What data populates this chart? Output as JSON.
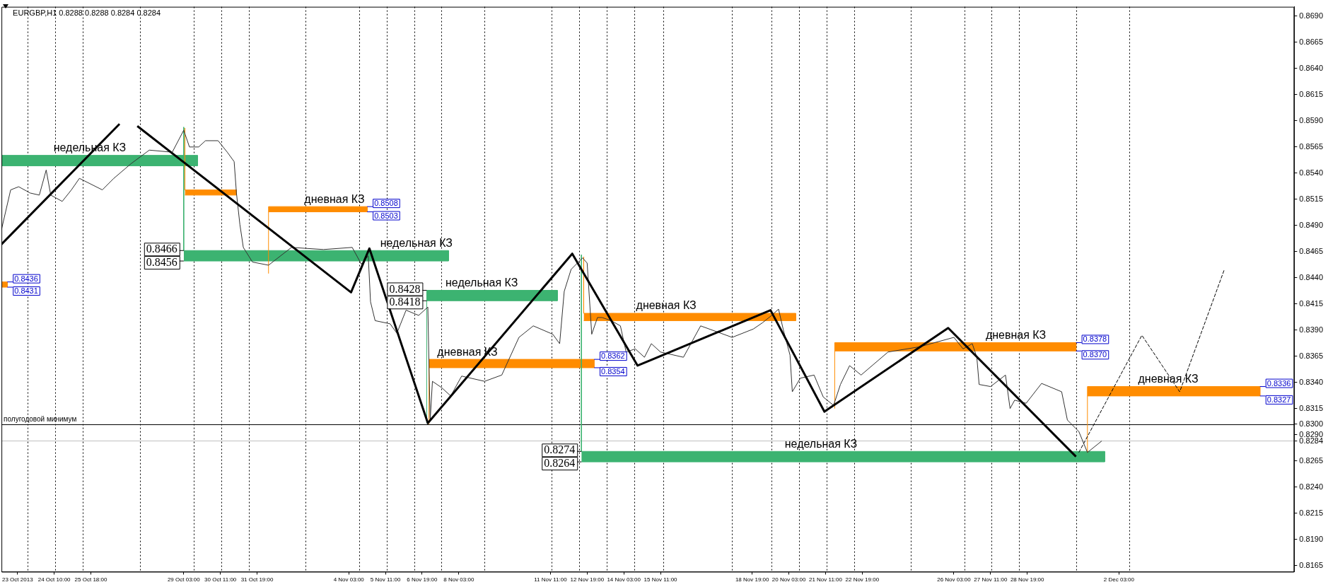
{
  "chart_data": {
    "type": "line",
    "title": "EURGBP,H1 0.8288 0.8288 0.8284 0.8284",
    "xlim": [
      "2013-10-22T12:00",
      "2013-12-08T12:00"
    ],
    "ylim": [
      0.8159,
      0.8699
    ],
    "xticks": [
      {
        "value": "2013-10-23T02:00",
        "label": "23 Oct 2013"
      },
      {
        "value": "2013-10-24T10:00",
        "label": "24 Oct 10:00"
      },
      {
        "value": "2013-10-25T18:00",
        "label": "25 Oct 18:00"
      },
      {
        "value": "2013-10-29T03:00",
        "label": "29 Oct 03:00"
      },
      {
        "value": "2013-10-30T11:00",
        "label": "30 Oct 11:00"
      },
      {
        "value": "2013-10-31T19:00",
        "label": "31 Oct 19:00"
      },
      {
        "value": "2013-11-04T03:00",
        "label": "4 Nov 03:00"
      },
      {
        "value": "2013-11-05T11:00",
        "label": "5 Nov 11:00"
      },
      {
        "value": "2013-11-06T19:00",
        "label": "6 Nov 19:00"
      },
      {
        "value": "2013-11-08T03:00",
        "label": "8 Nov 03:00"
      },
      {
        "value": "2013-11-11T11:00",
        "label": "11 Nov 11:00"
      },
      {
        "value": "2013-11-12T19:00",
        "label": "12 Nov 19:00"
      },
      {
        "value": "2013-11-14T03:00",
        "label": "14 Nov 03:00"
      },
      {
        "value": "2013-11-15T11:00",
        "label": "15 Nov 11:00"
      },
      {
        "value": "2013-11-18T19:00",
        "label": "18 Nov 19:00"
      },
      {
        "value": "2013-11-20T03:00",
        "label": "20 Nov 03:00"
      },
      {
        "value": "2013-11-21T11:00",
        "label": "21 Nov 11:00"
      },
      {
        "value": "2013-11-22T19:00",
        "label": "22 Nov 19:00"
      },
      {
        "value": "2013-11-26T03:00",
        "label": "26 Nov 03:00"
      },
      {
        "value": "2013-11-27T11:00",
        "label": "27 Nov 11:00"
      },
      {
        "value": "2013-11-28T19:00",
        "label": "28 Nov 19:00"
      },
      {
        "value": "2013-12-02T03:00",
        "label": "2 Dec 03:00"
      }
    ],
    "yticks": [
      {
        "value": 0.869,
        "label": "0.8690"
      },
      {
        "value": 0.8665,
        "label": "0.8665"
      },
      {
        "value": 0.864,
        "label": "0.8640"
      },
      {
        "value": 0.8615,
        "label": "0.8615"
      },
      {
        "value": 0.859,
        "label": "0.8590"
      },
      {
        "value": 0.8565,
        "label": "0.8565"
      },
      {
        "value": 0.854,
        "label": "0.8540"
      },
      {
        "value": 0.8515,
        "label": "0.8515"
      },
      {
        "value": 0.849,
        "label": "0.8490"
      },
      {
        "value": 0.8465,
        "label": "0.8465"
      },
      {
        "value": 0.844,
        "label": "0.8440"
      },
      {
        "value": 0.8415,
        "label": "0.8415"
      },
      {
        "value": 0.839,
        "label": "0.8390"
      },
      {
        "value": 0.8365,
        "label": "0.8365"
      },
      {
        "value": 0.834,
        "label": "0.8340"
      },
      {
        "value": 0.8315,
        "label": "0.8315"
      },
      {
        "value": 0.83,
        "label": "0.8300"
      },
      {
        "value": 0.829,
        "label": "0.8290"
      },
      {
        "value": 0.8284,
        "label": "0.8284"
      },
      {
        "value": 0.8265,
        "label": "0.8265"
      },
      {
        "value": 0.824,
        "label": "0.8240"
      },
      {
        "value": 0.8215,
        "label": "0.8215"
      },
      {
        "value": 0.819,
        "label": "0.8190"
      },
      {
        "value": 0.8165,
        "label": "0.8165"
      }
    ],
    "grid": false,
    "legend": false,
    "marker": "none",
    "series": [
      {
        "color": "#3cb371",
        "x": [
          "2013-10-22T12:00",
          "2013-10-29T15:00",
          "2013-10-29T15:00",
          "2013-10-22T12:00"
        ],
        "values": [
          0.8557,
          0.8557,
          0.8547,
          0.8547
        ],
        "lower": [
          0.8547,
          0.8547,
          null,
          null
        ],
        "upper": [
          0.8557,
          0.8557,
          null,
          null
        ]
      },
      {
        "color": "#ff8c00",
        "x": [
          "2013-10-22T12:00",
          "2013-10-22T17:00",
          "2013-10-22T17:00",
          "2013-10-22T12:00"
        ],
        "values": [
          0.8436,
          0.8436,
          0.8431,
          0.8431
        ],
        "lower": [
          0.8431,
          0.8431,
          null,
          null
        ],
        "upper": [
          0.8436,
          0.8436,
          null,
          null
        ]
      },
      {
        "color": "#ff8c00",
        "x": [
          "2013-10-29T04:00",
          "2013-10-29T04:00",
          "2013-10-31T01:00",
          "2013-10-31T01:00",
          "2013-10-29T04:00"
        ],
        "values": [
          0.8583,
          0.8524,
          0.8524,
          0.8519,
          0.8519
        ],
        "lower": [
          null,
          0.8519,
          0.8519,
          null,
          null
        ],
        "upper": [
          null,
          0.8524,
          0.8524,
          null,
          null
        ]
      },
      {
        "color": "#3cb371",
        "x": [
          "2013-10-29T03:00",
          "2013-10-29T03:00",
          "2013-11-07T18:00",
          "2013-11-07T18:00",
          "2013-10-29T03:00"
        ],
        "values": [
          0.8584,
          0.8466,
          0.8466,
          0.8456,
          0.8456
        ],
        "lower": [
          null,
          0.8456,
          0.8456,
          null,
          null
        ],
        "upper": [
          null,
          0.8466,
          0.8466,
          null,
          null
        ]
      },
      {
        "color": "#ff8c00",
        "x": [
          "2013-11-01T05:00",
          "2013-11-01T05:00",
          "2013-11-04T19:00",
          "2013-11-04T19:00",
          "2013-11-01T05:00"
        ],
        "values": [
          0.8444,
          0.8508,
          0.8508,
          0.8503,
          0.8503
        ],
        "lower": [
          null,
          0.8503,
          0.8503,
          null,
          null
        ],
        "upper": [
          null,
          0.8508,
          0.8508,
          null,
          null
        ]
      },
      {
        "color": "#3cb371",
        "x": [
          "2013-11-06T23:00",
          "2013-11-06T23:00",
          "2013-11-11T17:00",
          "2013-11-11T17:00",
          "2013-11-06T23:00"
        ],
        "values": [
          0.8301,
          0.8428,
          0.8428,
          0.8418,
          0.8418
        ],
        "lower": [
          null,
          0.8418,
          0.8418,
          null,
          null
        ],
        "upper": [
          null,
          0.8428,
          0.8428,
          null,
          null
        ]
      },
      {
        "color": "#ff8c00",
        "x": [
          "2013-11-07T01:00",
          "2013-11-07T01:00",
          "2013-11-13T01:00",
          "2013-11-13T01:00",
          "2013-11-07T01:00"
        ],
        "values": [
          0.83,
          0.8362,
          0.8362,
          0.8354,
          0.8354
        ],
        "lower": [
          null,
          0.8354,
          0.8354,
          null,
          null
        ],
        "upper": [
          null,
          0.8362,
          0.8362,
          null,
          null
        ]
      },
      {
        "color": "#3cb371",
        "x": [
          "2013-11-12T14:00",
          "2013-11-12T14:00",
          "2013-12-01T14:30",
          "2013-12-01T14:30",
          "2013-11-12T14:00"
        ],
        "values": [
          0.8462,
          0.8274,
          0.8274,
          0.8264,
          0.8264
        ],
        "lower": [
          null,
          0.8264,
          0.8264,
          null,
          null
        ],
        "upper": [
          null,
          0.8274,
          0.8274,
          null,
          null
        ]
      },
      {
        "color": "#ff8c00",
        "x": [
          "2013-11-12T16:00",
          "2013-11-12T16:00",
          "2013-11-20T09:00",
          "2013-11-20T09:00",
          "2013-11-12T16:00"
        ],
        "values": [
          0.846,
          0.8406,
          0.8406,
          0.8399,
          0.8399
        ],
        "lower": [
          null,
          0.8399,
          0.8399,
          null,
          null
        ],
        "upper": [
          null,
          0.8406,
          0.8406,
          null,
          null
        ]
      },
      {
        "color": "#ff8c00",
        "x": [
          "2013-11-21T19:00",
          "2013-11-21T19:00",
          "2013-11-30T13:30",
          "2013-11-30T13:30",
          "2013-11-21T19:00"
        ],
        "values": [
          0.8315,
          0.8378,
          0.8378,
          0.837,
          0.837
        ],
        "lower": [
          null,
          0.837,
          0.837,
          null,
          null
        ],
        "upper": [
          null,
          0.8378,
          0.8378,
          null,
          null
        ]
      },
      {
        "color": "#ff8c00",
        "x": [
          "2013-11-30T23:30",
          "2013-11-30T23:30",
          "2013-12-07T06:00",
          "2013-12-07T06:00",
          "2013-11-30T23:30"
        ],
        "values": [
          0.8273,
          0.8336,
          0.8336,
          0.8327,
          0.8327
        ],
        "lower": [
          null,
          0.8327,
          0.8327,
          null,
          null
        ],
        "upper": [
          null,
          0.8336,
          0.8336,
          null,
          null
        ]
      },
      {
        "color": "#333333",
        "x": [
          "2013-10-22T12:00",
          "2013-10-22T20:00",
          "2013-10-23T03:00",
          "2013-10-23T13:00",
          "2013-10-23T21:00",
          "2013-10-24T03:00",
          "2013-10-24T07:00",
          "2013-10-24T17:00",
          "2013-10-25T01:00",
          "2013-10-25T08:00",
          "2013-10-26T04:00",
          "2013-10-26T14:00",
          "2013-10-27T05:00",
          "2013-10-27T21:00",
          "2013-10-28T17:00",
          "2013-10-29T03:00",
          "2013-10-29T08:00",
          "2013-10-29T16:00",
          "2013-10-29T22:00",
          "2013-10-30T09:00",
          "2013-10-30T17:00",
          "2013-10-30T23:00",
          "2013-10-31T01:00",
          "2013-10-31T04:00",
          "2013-10-31T07:00",
          "2013-10-31T15:00",
          "2013-11-01T05:00",
          "2013-11-02T01:00",
          "2013-11-03T05:00",
          "2013-11-04T06:00",
          "2013-11-04T14:00",
          "2013-11-04T20:00",
          "2013-11-04T22:00",
          "2013-11-05T02:00",
          "2013-11-05T15:00",
          "2013-11-05T21:00",
          "2013-11-06T05:00",
          "2013-11-06T16:00",
          "2013-11-07T00:00",
          "2013-11-07T02:00",
          "2013-11-07T04:00",
          "2013-11-07T12:00",
          "2013-11-07T20:00",
          "2013-11-08T05:30",
          "2013-11-09T01:30",
          "2013-11-09T16:30",
          "2013-11-10T07:30",
          "2013-11-10T20:00",
          "2013-11-11T13:00",
          "2013-11-11T19:00",
          "2013-11-11T23:00",
          "2013-11-12T05:00",
          "2013-11-12T15:00",
          "2013-11-12T19:00",
          "2013-11-12T23:00",
          "2013-11-13T04:00",
          "2013-11-13T08:00",
          "2013-11-13T16:00",
          "2013-11-14T00:00",
          "2013-11-14T05:00",
          "2013-11-14T13:00",
          "2013-11-14T21:00",
          "2013-11-15T03:00",
          "2013-11-15T11:00",
          "2013-11-16T07:00",
          "2013-11-16T22:00",
          "2013-11-18T01:30",
          "2013-11-18T20:00",
          "2013-11-19T04:00",
          "2013-11-19T12:00",
          "2013-11-19T18:00",
          "2013-11-19T22:00",
          "2013-11-20T04:00",
          "2013-11-20T06:00",
          "2013-11-20T13:00",
          "2013-11-21T01:00",
          "2013-11-21T09:00",
          "2013-11-21T18:00",
          "2013-11-22T00:00",
          "2013-11-22T08:00",
          "2013-11-22T18:00",
          "2013-11-23T17:30",
          "2013-11-24T21:00",
          "2013-11-26T03:00",
          "2013-11-26T11:00",
          "2013-11-26T19:00",
          "2013-11-26T23:00",
          "2013-11-27T01:00",
          "2013-11-27T11:00",
          "2013-11-28T00:00",
          "2013-11-28T04:00",
          "2013-11-28T08:00",
          "2013-11-28T18:00",
          "2013-11-29T07:30",
          "2013-11-30T01:00",
          "2013-11-30T06:00",
          "2013-11-30T16:00",
          "2013-11-30T23:30",
          "2013-12-01T12:00"
        ],
        "values": [
          0.8486,
          0.8524,
          0.8527,
          0.8521,
          0.8519,
          0.8543,
          0.8519,
          0.8513,
          0.8524,
          0.8535,
          0.8524,
          0.8535,
          0.8549,
          0.8562,
          0.856,
          0.8581,
          0.8565,
          0.8565,
          0.8571,
          0.8571,
          0.856,
          0.8551,
          0.8521,
          0.8491,
          0.8469,
          0.8455,
          0.8452,
          0.8469,
          0.8467,
          0.8469,
          0.8453,
          0.8461,
          0.8417,
          0.8399,
          0.8396,
          0.8387,
          0.8409,
          0.8404,
          0.8412,
          0.8303,
          0.8341,
          0.8335,
          0.8327,
          0.8346,
          0.8341,
          0.8347,
          0.8383,
          0.8394,
          0.8386,
          0.8377,
          0.8427,
          0.8448,
          0.8459,
          0.8454,
          0.8386,
          0.8402,
          0.8402,
          0.8399,
          0.8394,
          0.8369,
          0.8372,
          0.8364,
          0.8377,
          0.8369,
          0.8364,
          0.8394,
          0.8383,
          0.8391,
          0.8397,
          0.8404,
          0.841,
          0.8391,
          0.8366,
          0.8331,
          0.8344,
          0.8347,
          0.8326,
          0.8318,
          0.8338,
          0.8356,
          0.8347,
          0.8369,
          0.8374,
          0.8383,
          0.8372,
          0.8377,
          0.8364,
          0.8338,
          0.8336,
          0.8347,
          0.8315,
          0.8323,
          0.832,
          0.8339,
          0.8331,
          0.8304,
          0.8293,
          0.8273,
          0.8284
        ]
      },
      {
        "color": "#000000",
        "x": [
          "2013-10-22T12:00",
          "2013-10-26T19:00",
          "2013-10-27T03:00",
          "2013-10-27T10:30",
          "2013-11-04T05:00",
          "2013-11-04T21:00",
          "2013-11-07T00:00",
          "2013-11-12T06:00",
          "2013-11-14T15:00",
          "2013-11-19T11:00",
          "2013-11-21T10:00",
          "2013-11-25T22:00",
          "2013-11-30T13:30"
        ],
        "values": [
          0.8472,
          0.8587,
          null,
          0.8585,
          0.8426,
          0.8468,
          0.8301,
          0.8463,
          0.8356,
          0.8409,
          0.8312,
          0.8392,
          0.8269
        ]
      },
      {
        "color": "#000000",
        "line_style": "dashed",
        "x": [
          "2013-11-30T16:00",
          "2013-12-02T23:00",
          "2013-12-04T08:00",
          "2013-12-05T23:00"
        ],
        "values": [
          0.8273,
          0.8385,
          0.8331,
          0.8448
        ]
      }
    ],
    "ref_lines": [
      {
        "axis": "y",
        "value": 0.83,
        "label": "полугодовой минимум",
        "color": "#000000"
      },
      {
        "axis": "y",
        "value": 0.8284,
        "color": "#c0c0c0"
      },
      {
        "axis": "x",
        "value": "2013-10-23T11:00",
        "line_style": "dotted",
        "color": "#000000"
      },
      {
        "axis": "x",
        "value": "2013-10-24T11:00",
        "line_style": "dotted",
        "color": "#000000"
      },
      {
        "axis": "x",
        "value": "2013-10-25T11:00",
        "line_style": "dotted",
        "color": "#000000"
      },
      {
        "axis": "x",
        "value": "2013-10-27T13:00",
        "line_style": "dotted",
        "color": "#000000"
      },
      {
        "axis": "x",
        "value": "2013-10-29T12:00",
        "line_style": "dotted",
        "color": "#000000"
      },
      {
        "axis": "x",
        "value": "2013-10-30T12:00",
        "line_style": "dotted",
        "color": "#000000"
      },
      {
        "axis": "x",
        "value": "2013-10-31T12:00",
        "line_style": "dotted",
        "color": "#000000"
      },
      {
        "axis": "x",
        "value": "2013-11-02T13:30",
        "line_style": "dotted",
        "color": "#000000"
      },
      {
        "axis": "x",
        "value": "2013-11-04T12:00",
        "line_style": "dotted",
        "color": "#000000"
      },
      {
        "axis": "x",
        "value": "2013-11-05T12:00",
        "line_style": "dotted",
        "color": "#000000"
      },
      {
        "axis": "x",
        "value": "2013-11-06T12:00",
        "line_style": "dotted",
        "color": "#000000"
      },
      {
        "axis": "x",
        "value": "2013-11-07T12:00",
        "line_style": "dotted",
        "color": "#000000"
      },
      {
        "axis": "x",
        "value": "2013-11-09T01:30",
        "line_style": "dotted",
        "color": "#000000"
      },
      {
        "axis": "x",
        "value": "2013-11-11T12:00",
        "line_style": "dotted",
        "color": "#000000"
      },
      {
        "axis": "x",
        "value": "2013-11-12T12:00",
        "line_style": "dotted",
        "color": "#000000"
      },
      {
        "axis": "x",
        "value": "2013-11-13T12:00",
        "line_style": "dotted",
        "color": "#000000"
      },
      {
        "axis": "x",
        "value": "2013-11-14T12:00",
        "line_style": "dotted",
        "color": "#000000"
      },
      {
        "axis": "x",
        "value": "2013-11-15T13:30",
        "line_style": "dotted",
        "color": "#000000"
      },
      {
        "axis": "x",
        "value": "2013-11-18T01:30",
        "line_style": "dotted",
        "color": "#000000"
      },
      {
        "axis": "x",
        "value": "2013-11-19T12:00",
        "line_style": "dotted",
        "color": "#000000"
      },
      {
        "axis": "x",
        "value": "2013-11-20T12:00",
        "line_style": "dotted",
        "color": "#000000"
      },
      {
        "axis": "x",
        "value": "2013-11-21T12:00",
        "line_style": "dotted",
        "color": "#000000"
      },
      {
        "axis": "x",
        "value": "2013-11-22T12:00",
        "line_style": "dotted",
        "color": "#000000"
      },
      {
        "axis": "x",
        "value": "2013-11-24T13:30",
        "line_style": "dotted",
        "color": "#000000"
      },
      {
        "axis": "x",
        "value": "2013-11-26T12:00",
        "line_style": "dotted",
        "color": "#000000"
      },
      {
        "axis": "x",
        "value": "2013-11-27T12:00",
        "line_style": "dotted",
        "color": "#000000"
      },
      {
        "axis": "x",
        "value": "2013-11-28T12:00",
        "line_style": "dotted",
        "color": "#000000"
      },
      {
        "axis": "x",
        "value": "2013-11-30T13:30",
        "line_style": "dotted",
        "color": "#000000"
      },
      {
        "axis": "x",
        "value": "2013-12-02T12:00",
        "line_style": "dotted",
        "color": "#000000"
      }
    ],
    "annotations": [
      {
        "text": "недельная КЗ",
        "x": "2013-10-25T17:00",
        "y": 0.8557
      },
      {
        "text": "0.8436",
        "x": "2013-10-22T17:00",
        "y": 0.8436
      },
      {
        "text": "0.8431",
        "x": "2013-10-22T17:00",
        "y": 0.8431
      },
      {
        "text": "0.8466",
        "x": "2013-10-29T03:00",
        "y": 0.8466
      },
      {
        "text": "0.8456",
        "x": "2013-10-29T03:00",
        "y": 0.8456
      },
      {
        "text": "недельная КЗ",
        "x": "2013-11-06T14:00",
        "y": 0.8466
      },
      {
        "text": "дневная КЗ",
        "x": "2013-11-03T14:30",
        "y": 0.8508
      },
      {
        "text": "0.8508",
        "x": "2013-11-04T19:00",
        "y": 0.8508
      },
      {
        "text": "0.8503",
        "x": "2013-11-04T19:00",
        "y": 0.8503
      },
      {
        "text": "0.8428",
        "x": "2013-11-06T23:00",
        "y": 0.8428
      },
      {
        "text": "0.8418",
        "x": "2013-11-06T23:00",
        "y": 0.8418
      },
      {
        "text": "недельная КЗ",
        "x": "2013-11-08T23:00",
        "y": 0.8428
      },
      {
        "text": "дневная КЗ",
        "x": "2013-11-08T10:30",
        "y": 0.8362
      },
      {
        "text": "0.8362",
        "x": "2013-11-13T01:00",
        "y": 0.8362
      },
      {
        "text": "0.8354",
        "x": "2013-11-13T01:00",
        "y": 0.8354
      },
      {
        "text": "0.8274",
        "x": "2013-11-12T14:00",
        "y": 0.8274
      },
      {
        "text": "0.8264",
        "x": "2013-11-12T14:00",
        "y": 0.8264
      },
      {
        "text": "недельная КЗ",
        "x": "2013-11-21T07:00",
        "y": 0.8274
      },
      {
        "text": "дневная КЗ",
        "x": "2013-11-15T16:00",
        "y": 0.8406
      },
      {
        "text": "дневная КЗ",
        "x": "2013-11-28T09:00",
        "y": 0.8378
      },
      {
        "text": "0.8378",
        "x": "2013-11-30T13:30",
        "y": 0.8378
      },
      {
        "text": "0.8370",
        "x": "2013-11-30T13:30",
        "y": 0.837
      },
      {
        "text": "дневная КЗ",
        "x": "2013-12-03T22:00",
        "y": 0.8336
      },
      {
        "text": "0.8336",
        "x": "2013-12-07T06:00",
        "y": 0.8336
      },
      {
        "text": "0.8327",
        "x": "2013-12-07T06:00",
        "y": 0.8327
      }
    ]
  }
}
